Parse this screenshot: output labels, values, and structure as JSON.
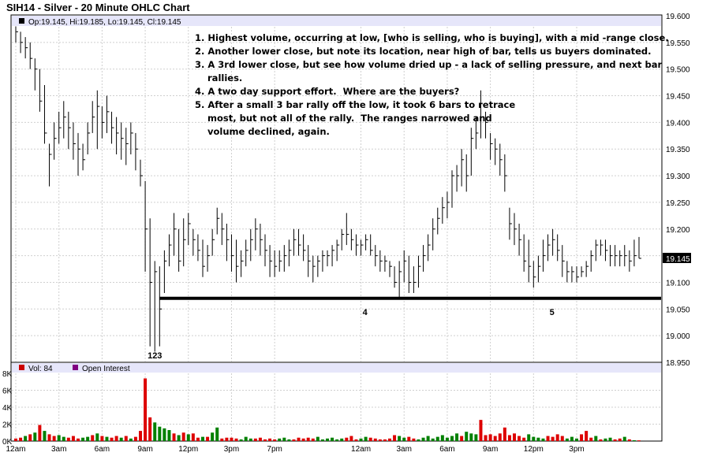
{
  "chart_data": {
    "type": "ohlc",
    "title": "SIH14 - Silver - 20 Minute OHLC Chart",
    "ohlc_readout": "Op:19.145, Hi:19.185, Lo:19.145, Cl:19.145",
    "last_price_label": "19.145",
    "last_price": 19.145,
    "price_ylim": [
      18.95,
      19.6
    ],
    "price_ticks": [
      "19.600",
      "19.550",
      "19.500",
      "19.450",
      "19.400",
      "19.350",
      "19.300",
      "19.250",
      "19.200",
      "19.150",
      "19.100",
      "19.050",
      "19.000",
      "18.950"
    ],
    "time_labels": [
      "12am",
      "3am",
      "6am",
      "9am",
      "12pm",
      "3pm",
      "7pm",
      "12am",
      "3am",
      "6am",
      "9am",
      "12pm",
      "3pm"
    ],
    "bar_count": 131,
    "bars": [
      [
        19.58,
        19.55,
        19.57
      ],
      [
        19.57,
        19.53,
        19.55
      ],
      [
        19.56,
        19.52,
        19.54
      ],
      [
        19.55,
        19.5,
        19.52
      ],
      [
        19.52,
        19.46,
        19.5
      ],
      [
        19.5,
        19.42,
        19.44
      ],
      [
        19.47,
        19.36,
        19.38
      ],
      [
        19.36,
        19.28,
        19.34
      ],
      [
        19.4,
        19.33,
        19.37
      ],
      [
        19.42,
        19.36,
        19.39
      ],
      [
        19.44,
        19.37,
        19.41
      ],
      [
        19.42,
        19.35,
        19.39
      ],
      [
        19.4,
        19.33,
        19.36
      ],
      [
        19.38,
        19.3,
        19.35
      ],
      [
        19.36,
        19.31,
        19.33
      ],
      [
        19.4,
        19.34,
        19.38
      ],
      [
        19.44,
        19.38,
        19.41
      ],
      [
        19.46,
        19.35,
        19.43
      ],
      [
        19.43,
        19.37,
        19.4
      ],
      [
        19.45,
        19.38,
        19.42
      ],
      [
        19.42,
        19.36,
        19.39
      ],
      [
        19.41,
        19.34,
        19.38
      ],
      [
        19.4,
        19.33,
        19.37
      ],
      [
        19.39,
        19.32,
        19.36
      ],
      [
        19.4,
        19.34,
        19.38
      ],
      [
        19.38,
        19.31,
        19.35
      ],
      [
        19.33,
        19.28,
        19.3
      ],
      [
        19.29,
        19.12,
        19.2
      ],
      [
        19.22,
        18.98,
        19.1
      ],
      [
        19.14,
        18.97,
        19.12
      ],
      [
        19.13,
        18.98,
        19.05
      ],
      [
        19.16,
        19.08,
        19.14
      ],
      [
        19.19,
        19.13,
        19.17
      ],
      [
        19.23,
        19.15,
        19.2
      ],
      [
        19.2,
        19.12,
        19.14
      ],
      [
        19.22,
        19.13,
        19.18
      ],
      [
        19.23,
        19.17,
        19.21
      ],
      [
        19.2,
        19.15,
        19.18
      ],
      [
        19.19,
        19.14,
        19.16
      ],
      [
        19.18,
        19.11,
        19.13
      ],
      [
        19.17,
        19.12,
        19.15
      ],
      [
        19.2,
        19.15,
        19.18
      ],
      [
        19.24,
        19.19,
        19.22
      ],
      [
        19.23,
        19.17,
        19.2
      ],
      [
        19.21,
        19.14,
        19.18
      ],
      [
        19.19,
        19.12,
        19.15
      ],
      [
        19.18,
        19.1,
        19.13
      ],
      [
        19.16,
        19.11,
        19.14
      ],
      [
        19.18,
        19.13,
        19.16
      ],
      [
        19.2,
        19.14,
        19.18
      ],
      [
        19.22,
        19.16,
        19.2
      ],
      [
        19.21,
        19.15,
        19.18
      ],
      [
        19.19,
        19.13,
        19.16
      ],
      [
        19.17,
        19.11,
        19.14
      ],
      [
        19.16,
        19.11,
        19.13
      ],
      [
        19.16,
        19.12,
        19.14
      ],
      [
        19.17,
        19.12,
        19.15
      ],
      [
        19.18,
        19.13,
        19.16
      ],
      [
        19.2,
        19.15,
        19.18
      ],
      [
        19.2,
        19.15,
        19.17
      ],
      [
        19.19,
        19.14,
        19.16
      ],
      [
        19.17,
        19.11,
        19.14
      ],
      [
        19.15,
        19.1,
        19.13
      ],
      [
        19.15,
        19.11,
        19.14
      ],
      [
        19.16,
        19.12,
        19.15
      ],
      [
        19.16,
        19.13,
        19.15
      ],
      [
        19.17,
        19.13,
        19.16
      ],
      [
        19.18,
        19.14,
        19.17
      ],
      [
        19.2,
        19.16,
        19.19
      ],
      [
        19.23,
        19.17,
        19.19
      ],
      [
        19.2,
        19.16,
        19.18
      ],
      [
        19.19,
        19.15,
        19.17
      ],
      [
        19.18,
        19.15,
        19.17
      ],
      [
        19.19,
        19.16,
        19.18
      ],
      [
        19.19,
        19.15,
        19.16
      ],
      [
        19.17,
        19.13,
        19.15
      ],
      [
        19.16,
        19.12,
        19.14
      ],
      [
        19.15,
        19.12,
        19.14
      ],
      [
        19.14,
        19.11,
        19.13
      ],
      [
        19.13,
        19.09,
        19.1
      ],
      [
        19.14,
        19.07,
        19.12
      ],
      [
        19.16,
        19.1,
        19.14
      ],
      [
        19.15,
        19.08,
        19.1
      ],
      [
        19.13,
        19.08,
        19.1
      ],
      [
        19.15,
        19.09,
        19.13
      ],
      [
        19.17,
        19.12,
        19.15
      ],
      [
        19.19,
        19.14,
        19.17
      ],
      [
        19.22,
        19.16,
        19.2
      ],
      [
        19.24,
        19.19,
        19.22
      ],
      [
        19.26,
        19.21,
        19.24
      ],
      [
        19.27,
        19.22,
        19.25
      ],
      [
        19.31,
        19.24,
        19.3
      ],
      [
        19.32,
        19.27,
        19.3
      ],
      [
        19.35,
        19.28,
        19.33
      ],
      [
        19.34,
        19.27,
        19.3
      ],
      [
        19.39,
        19.3,
        19.37
      ],
      [
        19.41,
        19.35,
        19.38
      ],
      [
        19.46,
        19.37,
        19.41
      ],
      [
        19.42,
        19.37,
        19.4
      ],
      [
        19.38,
        19.33,
        19.36
      ],
      [
        19.37,
        19.32,
        19.35
      ],
      [
        19.36,
        19.3,
        19.33
      ],
      [
        19.34,
        19.27,
        19.3
      ],
      [
        19.24,
        19.18,
        19.21
      ],
      [
        19.23,
        19.17,
        19.2
      ],
      [
        19.21,
        19.15,
        19.18
      ],
      [
        19.19,
        19.12,
        19.14
      ],
      [
        19.18,
        19.1,
        19.13
      ],
      [
        19.14,
        19.09,
        19.11
      ],
      [
        19.15,
        19.1,
        19.13
      ],
      [
        19.18,
        19.12,
        19.15
      ],
      [
        19.19,
        19.14,
        19.17
      ],
      [
        19.2,
        19.15,
        19.18
      ],
      [
        19.19,
        19.14,
        19.16
      ],
      [
        19.17,
        19.11,
        19.14
      ],
      [
        19.14,
        19.1,
        19.12
      ],
      [
        19.13,
        19.1,
        19.12
      ],
      [
        19.13,
        19.1,
        19.11
      ],
      [
        19.13,
        19.11,
        19.12
      ],
      [
        19.14,
        19.11,
        19.13
      ],
      [
        19.16,
        19.12,
        19.15
      ],
      [
        19.18,
        19.14,
        19.17
      ],
      [
        19.18,
        19.15,
        19.17
      ],
      [
        19.18,
        19.14,
        19.16
      ],
      [
        19.17,
        19.13,
        19.15
      ],
      [
        19.17,
        19.13,
        19.15
      ],
      [
        19.16,
        19.13,
        19.15
      ],
      [
        19.17,
        19.13,
        19.15
      ],
      [
        19.16,
        19.12,
        19.14
      ],
      [
        19.18,
        19.13,
        19.15
      ],
      [
        19.185,
        19.145,
        19.145
      ]
    ],
    "annotation_notes": [
      "1. Highest volume, occurring at low, [who is selling, who is buying], with a mid -range close.",
      "2. Another lower close, but note its location, near high of bar, tells us buyers dominated.",
      "3. A 3rd lower close, but see how volume dried up - a lack of selling pressure, and next bar",
      "    rallies.",
      "4. A two day support effort.  Where are the buyers?",
      "5. After a small 3 bar rally off the low, it took 6 bars to retrace",
      "    most, but not all of the rally.  The ranges narrowed and",
      "    volume declined, again."
    ],
    "bar_markers": [
      {
        "label": "1",
        "bar": 28
      },
      {
        "label": "2",
        "bar": 29
      },
      {
        "label": "3",
        "bar": 30
      }
    ],
    "support_line": {
      "price": 19.07,
      "from_bar": 32,
      "to_bar": 130
    },
    "support_labels": [
      {
        "label": "4",
        "bar": 73
      },
      {
        "label": "5",
        "bar": 112
      }
    ],
    "volume": {
      "legend": "Vol: 84",
      "ylim": [
        0,
        8000
      ],
      "ticks": [
        "8K",
        "6K",
        "4K",
        "2K",
        "0K"
      ],
      "values": [
        300,
        400,
        600,
        800,
        1000,
        1900,
        1200,
        800,
        600,
        700,
        500,
        400,
        600,
        300,
        400,
        500,
        700,
        900,
        600,
        500,
        400,
        600,
        400,
        600,
        300,
        500,
        1200,
        7400,
        2800,
        2200,
        1700,
        1500,
        1300,
        900,
        700,
        1000,
        800,
        900,
        400,
        500,
        500,
        1000,
        1600,
        300,
        400,
        400,
        300,
        200,
        500,
        300,
        300,
        400,
        200,
        300,
        200,
        300,
        400,
        200,
        200,
        400,
        300,
        400,
        300,
        500,
        200,
        300,
        400,
        200,
        300,
        400,
        600,
        200,
        300,
        500,
        400,
        300,
        200,
        200,
        300,
        700,
        600,
        400,
        500,
        300,
        200,
        400,
        600,
        300,
        500,
        700,
        400,
        600,
        900,
        600,
        1100,
        900,
        800,
        2500,
        700,
        800,
        600,
        900,
        1600,
        700,
        900,
        600,
        400,
        800,
        500,
        400,
        300,
        600,
        500,
        800,
        600,
        300,
        500,
        300,
        800,
        1200,
        400,
        600,
        200,
        300,
        400,
        200,
        300,
        500,
        200,
        100,
        84
      ],
      "up": [
        0,
        0,
        1,
        0,
        1,
        0,
        1,
        0,
        0,
        1,
        1,
        0,
        0,
        0,
        1,
        1,
        0,
        1,
        0,
        1,
        0,
        0,
        1,
        0,
        1,
        0,
        0,
        0,
        0,
        1,
        1,
        1,
        1,
        0,
        1,
        0,
        1,
        0,
        0,
        1,
        0,
        1,
        1,
        0,
        0,
        0,
        0,
        1,
        1,
        1,
        0,
        0,
        0,
        0,
        0,
        1,
        1,
        1,
        0,
        0,
        0,
        0,
        0,
        1,
        1,
        1,
        1,
        1,
        1,
        0,
        0,
        0,
        1,
        1,
        0,
        0,
        0,
        0,
        0,
        0,
        1,
        1,
        0,
        0,
        1,
        1,
        1,
        1,
        1,
        1,
        1,
        1,
        1,
        0,
        1,
        1,
        1,
        0,
        0,
        0,
        0,
        0,
        0,
        0,
        0,
        0,
        0,
        1,
        1,
        1,
        1,
        0,
        0,
        0,
        0,
        1,
        1,
        1,
        0,
        0,
        0,
        1,
        0,
        1,
        1,
        0,
        0,
        1,
        0,
        1,
        0
      ]
    },
    "open_interest_legend": "Open Interest",
    "colors": {
      "header_band": "#e6e6fa",
      "grid": "#cfcfcf",
      "up_volume": "#008000",
      "down_volume": "#dd0000",
      "open_interest_swatch": "#800080",
      "volume_swatch": "#cc0000"
    }
  }
}
